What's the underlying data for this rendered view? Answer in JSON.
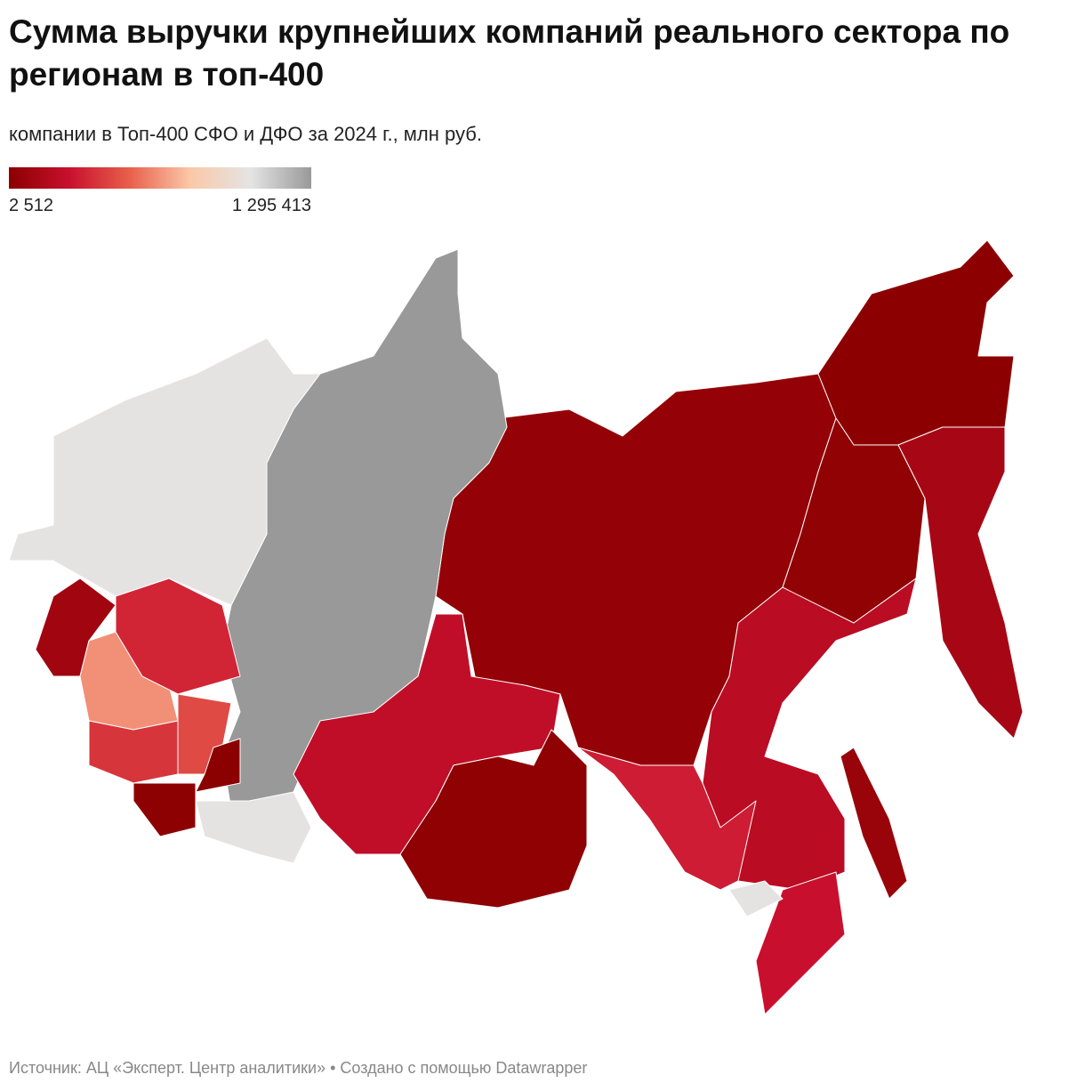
{
  "chart_data": {
    "type": "choropleth",
    "title": "Сумма выручки крупнейших компаний реального сектора по регионам в топ-400",
    "subtitle": "компании в Топ-400 СФО и ДФО за 2024 г., млн руб.",
    "source": "Источник: АЦ «Эксперт. Центр аналитики» • Создано с помощью Datawrapper",
    "zlim": [
      2512,
      1295413
    ],
    "zticks": [
      {
        "value": 2512,
        "label": "2 512"
      },
      {
        "value": 1295413,
        "label": "1 295 413"
      }
    ],
    "colorscale": [
      "#8b0000",
      "#c8102e",
      "#e8604c",
      "#fbc8a8",
      "#e4e4e4",
      "#999999"
    ],
    "values": [
      40000,
      10000,
      30000,
      120000,
      200000,
      300000,
      260000,
      60000,
      1030000,
      1295413,
      1030000,
      230000,
      20000,
      90000,
      640000,
      330000,
      380000,
      450000,
      2512,
      15000,
      1030000
    ]
  }
}
